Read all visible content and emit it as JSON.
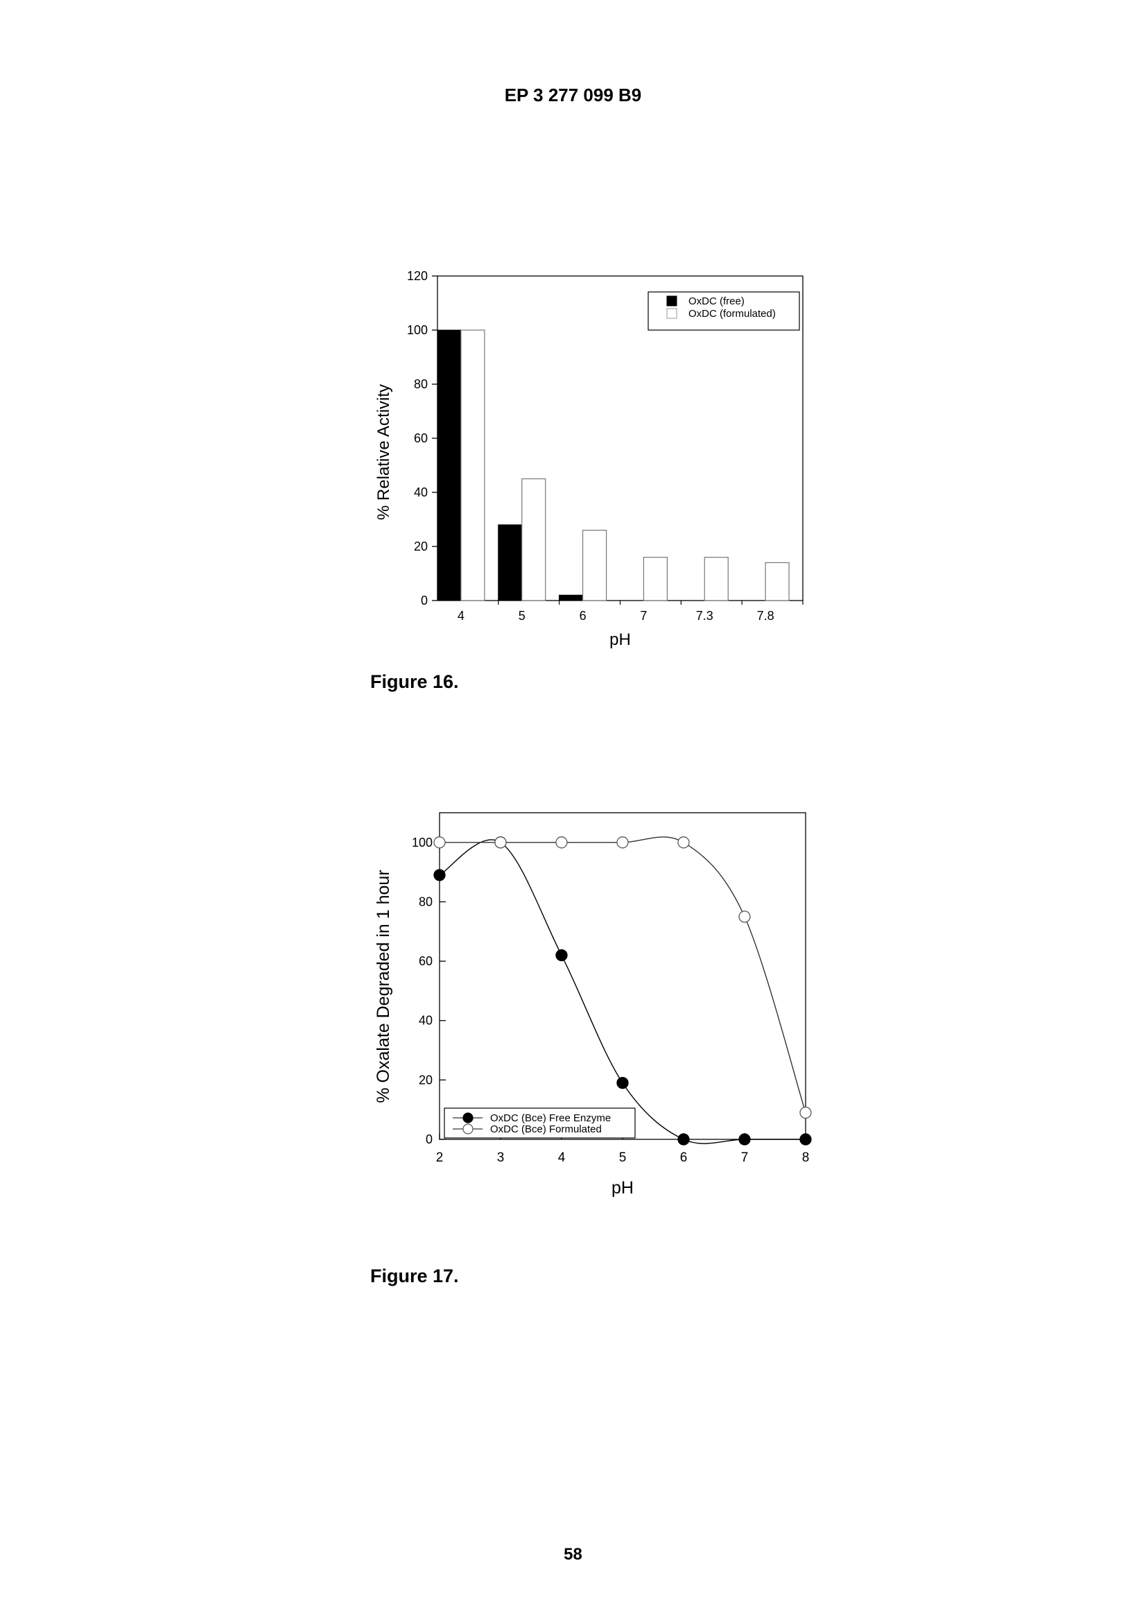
{
  "header": {
    "document_number": "EP 3 277 099 B9"
  },
  "figures": [
    {
      "caption": "Figure 16."
    },
    {
      "caption": "Figure 17."
    }
  ],
  "page": {
    "number": "58"
  },
  "chart_data": [
    {
      "type": "bar",
      "categories": [
        "4",
        "5",
        "6",
        "7",
        "7.3",
        "7.8"
      ],
      "series": [
        {
          "name": "OxDC (free)",
          "values": [
            100,
            28,
            2,
            0,
            0,
            0
          ],
          "color": "#000000"
        },
        {
          "name": "OxDC (formulated)",
          "values": [
            100,
            45,
            26,
            16,
            16,
            14
          ],
          "color": "#ffffff"
        }
      ],
      "xlabel": "pH",
      "ylabel": "% Relative Activity",
      "ylim": [
        0,
        120
      ],
      "yticks": [
        0,
        20,
        40,
        60,
        80,
        100,
        120
      ],
      "legend_position": "top-right",
      "grid": false
    },
    {
      "type": "line",
      "series": [
        {
          "name": "OxDC (Bce) Free Enzyme",
          "marker": "filled-circle",
          "x": [
            2,
            3,
            4,
            5,
            6,
            7,
            8
          ],
          "y": [
            89,
            100,
            62,
            19,
            0,
            0,
            0
          ]
        },
        {
          "name": "OxDC (Bce) Formulated",
          "marker": "open-circle",
          "x": [
            2,
            3,
            4,
            5,
            6,
            7,
            8
          ],
          "y": [
            100,
            100,
            100,
            100,
            100,
            75,
            9
          ]
        }
      ],
      "xlabel": "pH",
      "ylabel": "% Oxalate Degraded in 1 hour",
      "xlim": [
        2,
        8
      ],
      "ylim": [
        0,
        110
      ],
      "xticks": [
        2,
        3,
        4,
        5,
        6,
        7,
        8
      ],
      "yticks": [
        0,
        20,
        40,
        60,
        80,
        100
      ],
      "legend_position": "bottom-left",
      "grid": false
    }
  ]
}
